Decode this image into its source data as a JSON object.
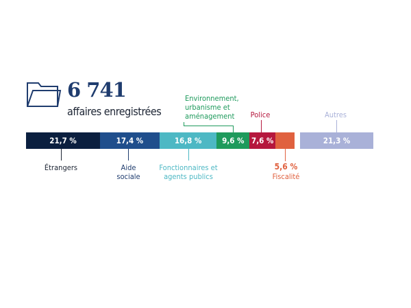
{
  "header": {
    "total": "6 741",
    "subtitle": "affaires enregistrées",
    "icon": "folder-icon"
  },
  "chart_data": {
    "type": "bar",
    "orientation": "stacked-horizontal",
    "unit": "%",
    "categories": [
      "Étrangers",
      "Aide sociale",
      "Fonctionnaires et agents publics",
      "Environnement, urbanisme et aménagement",
      "Police",
      "Fiscalité",
      "Autres"
    ],
    "values": [
      21.7,
      17.4,
      16.8,
      9.6,
      7.6,
      5.6,
      21.3
    ],
    "value_labels": [
      "21,7 %",
      "17,4 %",
      "16,8 %",
      "9,6 %",
      "7,6 %",
      "5,6 %",
      "21,3 %"
    ],
    "colors": [
      "#0b1f3f",
      "#1f4e8c",
      "#4db8c4",
      "#1e9a5c",
      "#b5173d",
      "#e0613f",
      "#a9b1d8"
    ],
    "label_colors": [
      "#1c2433",
      "#1f3c6e",
      "#4db8c4",
      "#1e9a5c",
      "#b5173d",
      "#e0613f",
      "#a9b1d8"
    ]
  }
}
